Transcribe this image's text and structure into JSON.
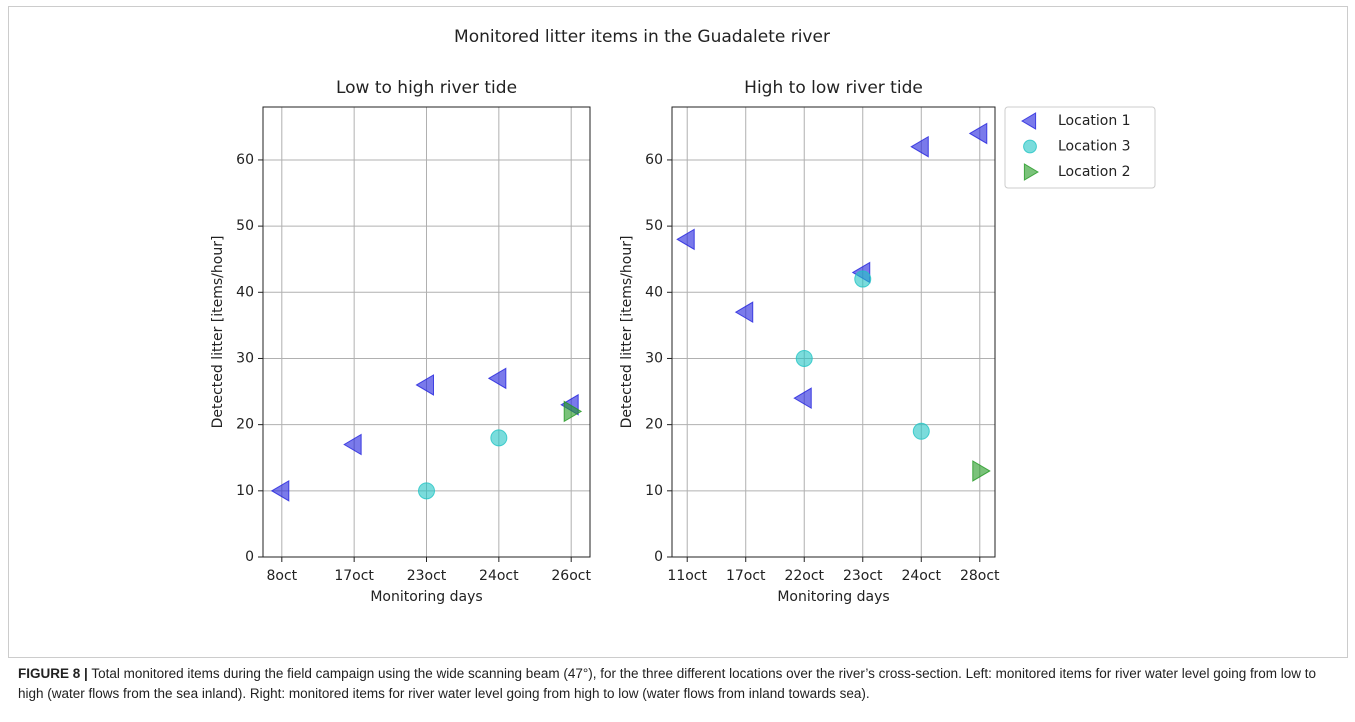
{
  "figure_title": "Monitored litter items in the Guadalete river",
  "chart_data": [
    {
      "type": "scatter",
      "title": "Low to high river tide",
      "xlabel": "Monitoring days",
      "ylabel": "Detected litter [items/hour]",
      "categories": [
        "8oct",
        "17oct",
        "23oct",
        "24oct",
        "26oct"
      ],
      "series": [
        {
          "color": "#2222dd",
          "marker": "triangle-left",
          "values": [
            10,
            17,
            26,
            27,
            23
          ]
        },
        {
          "color": "#22c4c4",
          "marker": "circle",
          "values": [
            null,
            null,
            10,
            18,
            null
          ]
        },
        {
          "color": "#229922",
          "marker": "triangle-right",
          "values": [
            null,
            null,
            null,
            null,
            22
          ]
        }
      ],
      "ylim": [
        0,
        68
      ],
      "yticks": [
        0,
        10,
        20,
        30,
        40,
        50,
        60
      ],
      "grid": true
    },
    {
      "type": "scatter",
      "title": "High to low river tide",
      "xlabel": "Monitoring days",
      "ylabel": "Detected litter [items/hour]",
      "categories": [
        "11oct",
        "17oct",
        "22oct",
        "23oct",
        "24oct",
        "28oct"
      ],
      "series": [
        {
          "name": "Location 1",
          "color": "#2222dd",
          "marker": "triangle-left",
          "values": [
            48,
            37,
            24,
            43,
            62,
            64
          ]
        },
        {
          "name": "Location 3",
          "color": "#22c4c4",
          "marker": "circle",
          "values": [
            null,
            null,
            30,
            42,
            19,
            null
          ]
        },
        {
          "name": "Location 2",
          "color": "#229922",
          "marker": "triangle-right",
          "values": [
            null,
            null,
            null,
            null,
            null,
            13
          ]
        }
      ],
      "ylim": [
        0,
        68
      ],
      "yticks": [
        0,
        10,
        20,
        30,
        40,
        50,
        60
      ],
      "grid": true,
      "legend": "outside-upper-right"
    }
  ],
  "caption": {
    "label": "FIGURE 8 |",
    "text": "Total monitored items during the field campaign using the wide scanning beam (47°), for the three different locations over the river’s cross-section. Left: monitored items for river water level going from low to high (water flows from the sea inland). Right: monitored items for river water level going from high to low (water flows from inland towards sea)."
  }
}
